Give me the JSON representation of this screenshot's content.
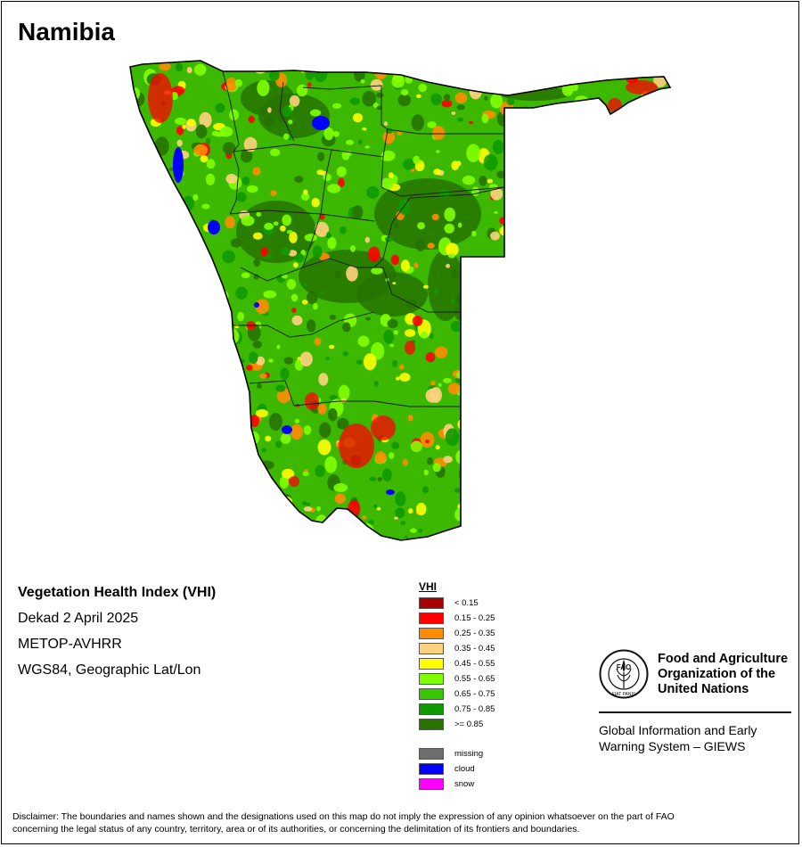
{
  "map": {
    "title": "Namibia"
  },
  "info": {
    "index_title": "Vegetation Health Index (VHI)",
    "period": "Dekad 2 April 2025",
    "sensor": "METOP-AVHRR",
    "projection": "WGS84, Geographic Lat/Lon"
  },
  "legend": {
    "title": "VHI",
    "classes": [
      {
        "label": "< 0.15",
        "color": "#a80000"
      },
      {
        "label": "0.15 - 0.25",
        "color": "#ff0000"
      },
      {
        "label": "0.25 - 0.35",
        "color": "#ff8c00"
      },
      {
        "label": "0.35 - 0.45",
        "color": "#ffd27f"
      },
      {
        "label": "0.45 - 0.55",
        "color": "#ffff00"
      },
      {
        "label": "0.55 - 0.65",
        "color": "#7fff00"
      },
      {
        "label": "0.65 - 0.75",
        "color": "#38c800"
      },
      {
        "label": "0.75 - 0.85",
        "color": "#109a00"
      },
      {
        "label": ">= 0.85",
        "color": "#267300"
      }
    ],
    "other": [
      {
        "label": "missing",
        "color": "#6e6e6e"
      },
      {
        "label": "cloud",
        "color": "#0000ff"
      },
      {
        "label": "snow",
        "color": "#ff00ff"
      }
    ]
  },
  "organization": {
    "name": "Food and Agriculture\nOrganization of the\nUnited Nations",
    "logo_letters": "FAO",
    "logo_motto": "FIAT PANIS",
    "program": "Global Information and Early\nWarning System – GIEWS"
  },
  "disclaimer": "Disclaimer: The boundaries and names shown and the designations used on this map do not imply the expression of any opinion whatsoever on the part of FAO\nconcerning the legal status of any country, territory, area or of its authorities, or concerning the delimitation of its frontiers and boundaries."
}
